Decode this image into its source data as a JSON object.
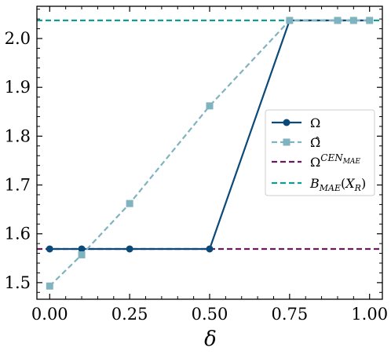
{
  "chart_data": {
    "type": "line",
    "xlabel": "δ",
    "ylabel": "",
    "xlim": [
      -0.04,
      1.04
    ],
    "ylim": [
      1.466,
      2.066
    ],
    "x_ticks": [
      0.0,
      0.25,
      0.5,
      0.75,
      1.0
    ],
    "x_tick_labels": [
      "0.00",
      "0.25",
      "0.50",
      "0.75",
      "1.00"
    ],
    "y_ticks": [
      1.5,
      1.6,
      1.7,
      1.8,
      1.9,
      2.0
    ],
    "y_tick_labels": [
      "1.5",
      "1.6",
      "1.7",
      "1.8",
      "1.9",
      "2.0"
    ],
    "grid": false,
    "legend_position": "center-right",
    "series": [
      {
        "name": "Ω",
        "style": "solid",
        "marker": "circle",
        "color": "#0b4a78",
        "x": [
          0.0,
          0.1,
          0.25,
          0.5,
          0.75,
          0.9,
          0.95,
          1.0
        ],
        "y": [
          1.569,
          1.569,
          1.569,
          1.569,
          2.037,
          2.037,
          2.037,
          2.037
        ]
      },
      {
        "name": "Ω̂",
        "style": "dashed",
        "marker": "square",
        "color": "#7fb3bf",
        "x": [
          0.0,
          0.1,
          0.25,
          0.5,
          0.75,
          0.9,
          0.95,
          1.0
        ],
        "y": [
          1.493,
          1.557,
          1.662,
          1.862,
          2.037,
          2.037,
          2.037,
          2.037
        ]
      },
      {
        "name": "Ω^{CEN_{MAE}}",
        "legend_main": "Ω",
        "legend_sup": "CEN",
        "legend_subsub": "MAE",
        "style": "dashed",
        "marker": "none",
        "color": "#6b1a5e",
        "hline": 1.569
      },
      {
        "name": "B_{MAE}(X_R)",
        "legend_main": "B",
        "legend_sub": "MAE",
        "legend_open": "(",
        "legend_var": "X",
        "legend_var_sub": "R",
        "legend_close": ")",
        "style": "dashed",
        "marker": "none",
        "color": "#0f9c95",
        "hline": 2.037
      }
    ]
  }
}
